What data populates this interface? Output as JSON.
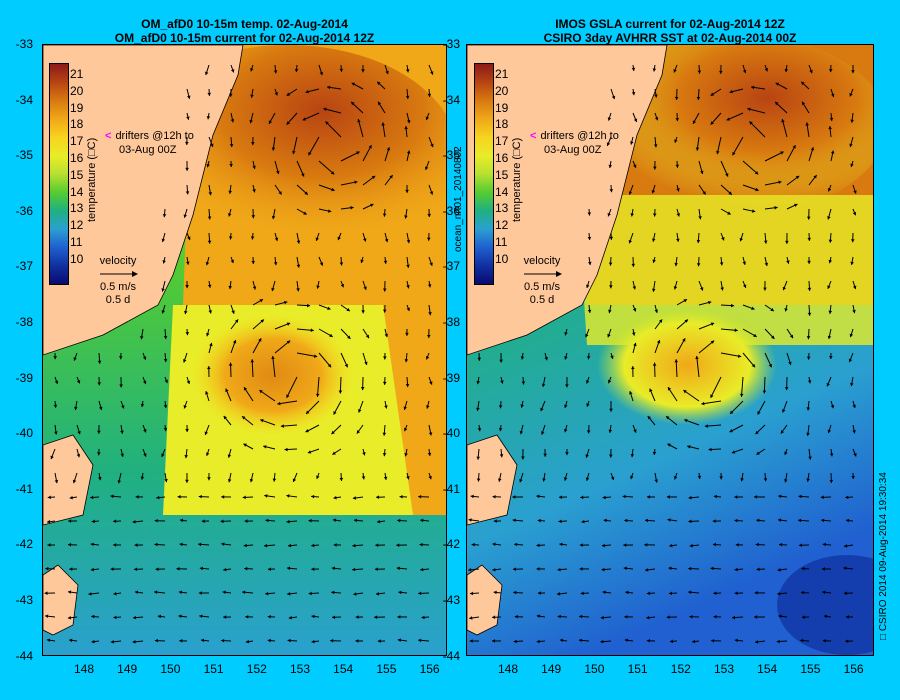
{
  "left": {
    "title_line1": "OM_afD0 10-15m temp. 02-Aug-2014",
    "title_line2": "OM_afD0 10-15m current for 02-Aug-2014 12Z"
  },
  "right": {
    "title_line1": "IMOS GSLA current for 02-Aug-2014 12Z",
    "title_line2": "CSIRO 3day AVHRR SST at 02-Aug-2014 00Z"
  },
  "lat_ticks": [
    "-33",
    "-34",
    "-35",
    "-36",
    "-37",
    "-38",
    "-39",
    "-40",
    "-41",
    "-42",
    "-43",
    "-44"
  ],
  "lon_ticks": [
    "148",
    "149",
    "150",
    "151",
    "152",
    "153",
    "154",
    "155",
    "156"
  ],
  "colorbar": {
    "ticks": [
      "21",
      "20",
      "19",
      "18",
      "17",
      "16",
      "15",
      "14",
      "13",
      "12",
      "11",
      "10"
    ],
    "label": "temperature (□C)",
    "colors": [
      "#8b1a1a",
      "#b84412",
      "#d87a10",
      "#f0a818",
      "#f7d31f",
      "#e9ec28",
      "#b8e030",
      "#55cc30",
      "#20b080",
      "#2aa0d0",
      "#2060d0",
      "#1030a0",
      "#0a0a70"
    ]
  },
  "drifters": {
    "line1": "drifters @12h to",
    "line2": "03-Aug 00Z",
    "marker": "<"
  },
  "velocity": {
    "label": "velocity",
    "line2": "0.5 m/s",
    "line3": "0.5 d"
  },
  "side_label": "ocean_nrt01_20140802",
  "footer": "□ CSIRO 2014   09-Aug-2014 19:30:34",
  "colors": {
    "background": "#00ccff",
    "land": "#ffc89b",
    "arrow": "#000000"
  }
}
